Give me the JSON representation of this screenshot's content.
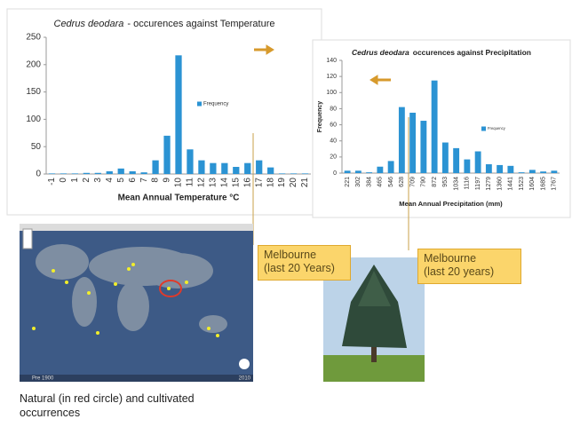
{
  "chart_data": [
    {
      "type": "bar",
      "title_species": "Cedrus deodara",
      "title": "- occurences against Temperature",
      "xlabel": "Mean Annual Temperature °C",
      "categories": [
        "-1",
        "0",
        "1",
        "2",
        "3",
        "4",
        "5",
        "6",
        "7",
        "8",
        "9",
        "10",
        "11",
        "12",
        "13",
        "14",
        "15",
        "16",
        "17",
        "18",
        "19",
        "20",
        "21"
      ],
      "series": [
        {
          "name": "Frequency",
          "color": "#2b93d3",
          "values": [
            1,
            1,
            1,
            2,
            2,
            5,
            10,
            5,
            3,
            25,
            70,
            217,
            45,
            25,
            20,
            20,
            13,
            20,
            25,
            12,
            1,
            1,
            1
          ]
        }
      ],
      "ylim": [
        0,
        250
      ],
      "yticks": [
        0,
        50,
        100,
        150,
        200,
        250
      ]
    },
    {
      "type": "bar",
      "title_species": "Cedrus deodara",
      "title": "occurences against Precipitation",
      "xlabel": "Mean Annual Precipitation (mm)",
      "ylabel": "Frequency",
      "categories": [
        "221",
        "302",
        "384",
        "465",
        "546",
        "628",
        "709",
        "790",
        "872",
        "953",
        "1034",
        "1116",
        "1197",
        "1279",
        "1360",
        "1441",
        "1523",
        "1604",
        "1685",
        "1767"
      ],
      "series": [
        {
          "name": "Frequency",
          "color": "#2b93d3",
          "values": [
            3,
            3,
            1,
            8,
            15,
            82,
            75,
            65,
            115,
            38,
            31,
            17,
            27,
            11,
            10,
            9,
            1,
            4,
            2,
            3
          ]
        }
      ],
      "ylim": [
        0,
        140
      ],
      "yticks": [
        0,
        20,
        40,
        60,
        80,
        100,
        120,
        140
      ]
    }
  ],
  "callouts": [
    "Melbourne\n(last 20 Years)",
    "Melbourne\n(last 20 years)"
  ],
  "map": {
    "left_label": "Pre 1900",
    "right_label": "2010"
  },
  "caption": "Natural (in red circle) and cultivated\noccurrences"
}
